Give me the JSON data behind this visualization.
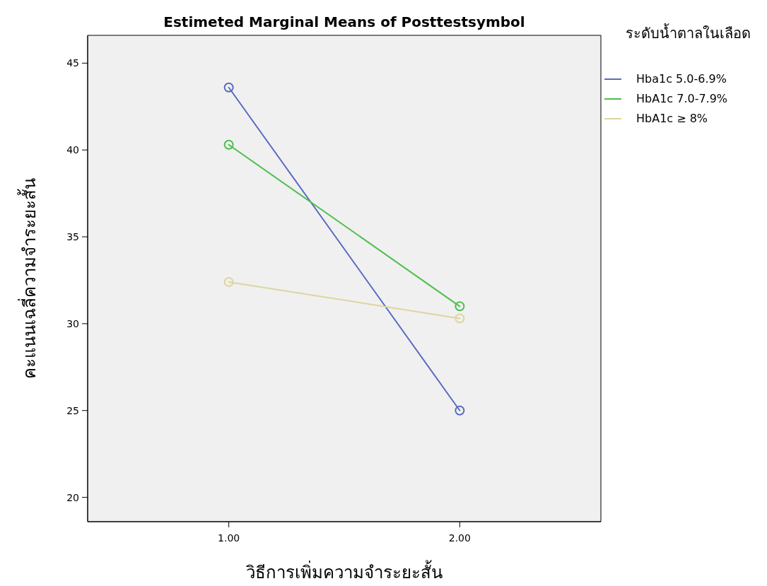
{
  "chart_data": {
    "type": "line",
    "title": "Estimeted Marginal Means of Posttestsymbol",
    "xlabel": "วิธีการเพิ่มความจำระยะสั้น",
    "ylabel": "คะแนนเฉลี่ความจำระยะสั้น",
    "legend_title": "ระดับน้ำตาลในเลือด",
    "categories": [
      "1.00",
      "2.00"
    ],
    "ylim": [
      18.6,
      46.6
    ],
    "yticks": [
      20,
      25,
      30,
      35,
      40,
      45
    ],
    "marker": "circle",
    "legend": "top right",
    "series": [
      {
        "name": "Hba1c 5.0-6.9%",
        "color": "#5a6bbf",
        "values": [
          43.6,
          25.0
        ]
      },
      {
        "name": "HbA1c 7.0-7.9%",
        "color": "#4cbf4c",
        "values": [
          40.3,
          31.0
        ]
      },
      {
        "name": "HbA1c ≥ 8%",
        "color": "#ddd5a0",
        "values": [
          32.4,
          30.3
        ]
      }
    ]
  }
}
